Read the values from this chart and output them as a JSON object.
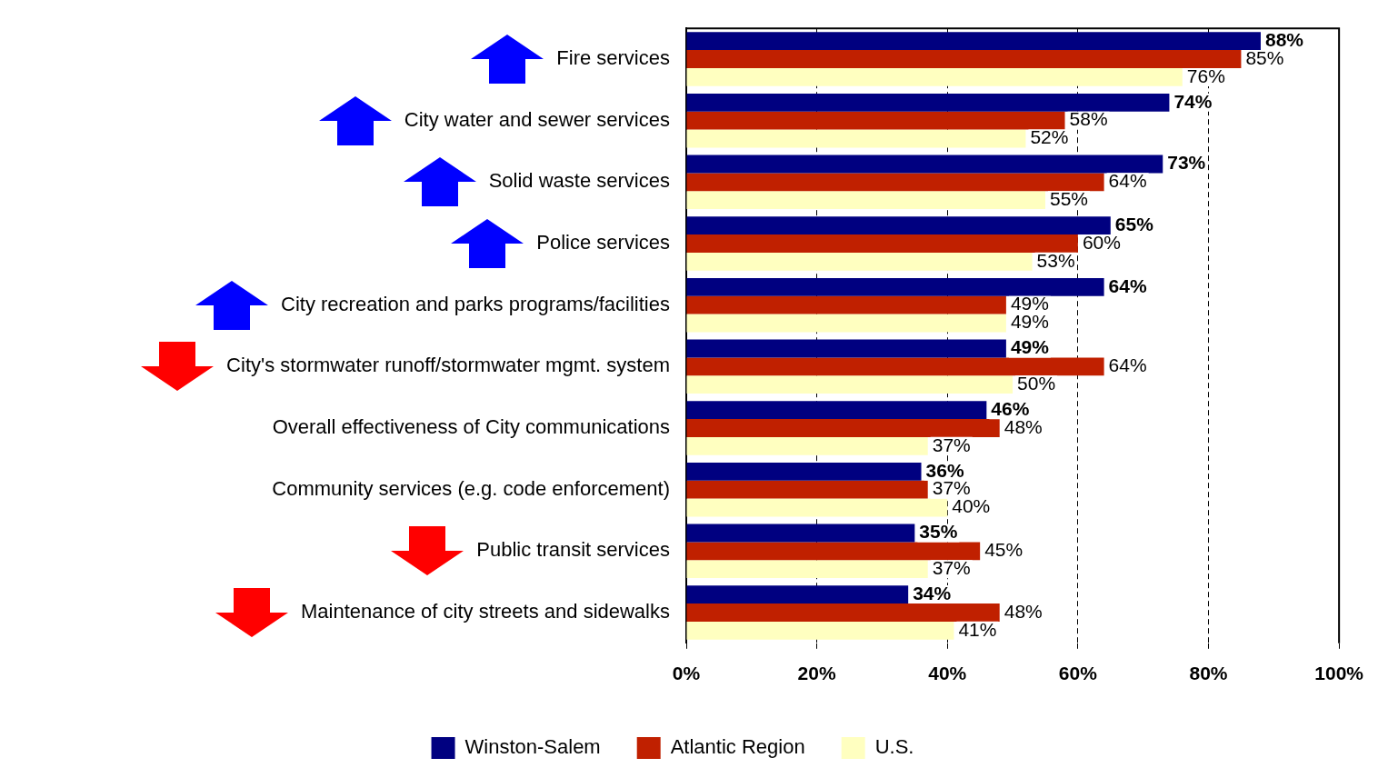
{
  "chart_data": {
    "type": "bar",
    "orientation": "horizontal",
    "categories": [
      "Fire services",
      "City water and sewer services",
      "Solid waste services",
      "Police services",
      "City recreation and parks programs/facilities",
      "City's stormwater runoff/stormwater mgmt. system",
      "Overall effectiveness of City communications",
      "Community services (e.g. code enforcement)",
      "Public transit services",
      "Maintenance of city streets and sidewalks"
    ],
    "series": [
      {
        "name": "Winston-Salem",
        "color": "#000080",
        "values": [
          88,
          74,
          73,
          65,
          64,
          49,
          46,
          36,
          35,
          34
        ],
        "value_labels": [
          "88%",
          "74%",
          "73%",
          "65%",
          "64%",
          "49%",
          "46%",
          "36%",
          "35%",
          "34%"
        ]
      },
      {
        "name": "Atlantic Region",
        "color": "#c02000",
        "values": [
          85,
          58,
          64,
          60,
          49,
          64,
          48,
          37,
          45,
          48
        ],
        "value_labels": [
          "85%",
          "58%",
          "64%",
          "60%",
          "49%",
          "64%",
          "48%",
          "37%",
          "45%",
          "48%"
        ]
      },
      {
        "name": "U.S.",
        "color": "#ffffc0",
        "values": [
          76,
          52,
          55,
          53,
          49,
          50,
          37,
          40,
          37,
          41
        ],
        "value_labels": [
          "76%",
          "52%",
          "55%",
          "53%",
          "49%",
          "50%",
          "37%",
          "40%",
          "37%",
          "41%"
        ]
      }
    ],
    "xlim": [
      0,
      100
    ],
    "xticks": [
      {
        "value": 0,
        "label": "0%"
      },
      {
        "value": 20,
        "label": "20%"
      },
      {
        "value": 40,
        "label": "40%"
      },
      {
        "value": 60,
        "label": "60%"
      },
      {
        "value": 80,
        "label": "80%"
      },
      {
        "value": 100,
        "label": "100%"
      }
    ],
    "grid": "x",
    "legend": "bottom"
  }
}
